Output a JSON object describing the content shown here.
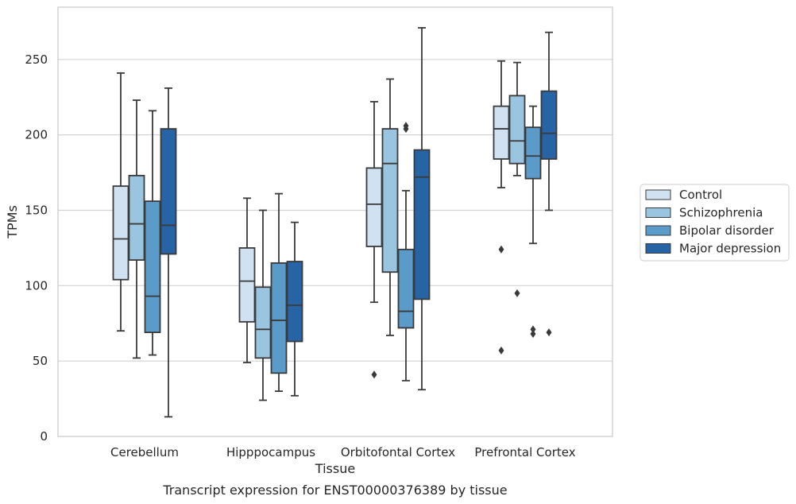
{
  "chart_data": {
    "type": "box",
    "caption": "Transcript expression for ENST00000376389 by tissue",
    "xlabel": "Tissue",
    "ylabel": "TPMs",
    "ylim": [
      0,
      285
    ],
    "yticks": [
      0,
      50,
      100,
      150,
      200,
      250
    ],
    "grid": "horizontal",
    "legend_placement": "right",
    "categories": [
      "Cerebellum",
      "Hipppocampus",
      "Orbitofontal Cortex",
      "Prefrontal Cortex"
    ],
    "series": [
      {
        "name": "Control",
        "color": "#d0e1f2",
        "boxes": [
          {
            "whislo": 70,
            "q1": 104,
            "med": 131,
            "q3": 166,
            "whishi": 241,
            "fliers": []
          },
          {
            "whislo": 49,
            "q1": 76,
            "med": 103,
            "q3": 125,
            "whishi": 158,
            "fliers": []
          },
          {
            "whislo": 89,
            "q1": 126,
            "med": 154,
            "q3": 178,
            "whishi": 222,
            "fliers": [
              41
            ]
          },
          {
            "whislo": 165,
            "q1": 184,
            "med": 204,
            "q3": 219,
            "whishi": 249,
            "fliers": [
              124,
              57
            ]
          }
        ]
      },
      {
        "name": "Schizophrenia",
        "color": "#9ac5e0",
        "boxes": [
          {
            "whislo": 52,
            "q1": 117,
            "med": 141,
            "q3": 173,
            "whishi": 223,
            "fliers": []
          },
          {
            "whislo": 24,
            "q1": 52,
            "med": 71,
            "q3": 99,
            "whishi": 150,
            "fliers": []
          },
          {
            "whislo": 67,
            "q1": 109,
            "med": 181,
            "q3": 204,
            "whishi": 237,
            "fliers": []
          },
          {
            "whislo": 173,
            "q1": 181,
            "med": 196,
            "q3": 226,
            "whishi": 248,
            "fliers": [
              95
            ]
          }
        ]
      },
      {
        "name": "Bipolar disorder",
        "color": "#5a9bc9",
        "boxes": [
          {
            "whislo": 54,
            "q1": 69,
            "med": 93,
            "q3": 156,
            "whishi": 216,
            "fliers": []
          },
          {
            "whislo": 30,
            "q1": 42,
            "med": 77,
            "q3": 115,
            "whishi": 161,
            "fliers": []
          },
          {
            "whislo": 37,
            "q1": 72,
            "med": 83,
            "q3": 124,
            "whishi": 163,
            "fliers": [
              204,
              206
            ]
          },
          {
            "whislo": 128,
            "q1": 171,
            "med": 186,
            "q3": 205,
            "whishi": 219,
            "fliers": [
              71,
              68
            ]
          }
        ]
      },
      {
        "name": "Major depression",
        "color": "#2664a6",
        "boxes": [
          {
            "whislo": 13,
            "q1": 121,
            "med": 140,
            "q3": 204,
            "whishi": 231,
            "fliers": []
          },
          {
            "whislo": 27,
            "q1": 63,
            "med": 87,
            "q3": 116,
            "whishi": 142,
            "fliers": []
          },
          {
            "whislo": 31,
            "q1": 91,
            "med": 172,
            "q3": 190,
            "whishi": 271,
            "fliers": []
          },
          {
            "whislo": 150,
            "q1": 184,
            "med": 201,
            "q3": 229,
            "whishi": 268,
            "fliers": [
              69
            ]
          }
        ]
      }
    ]
  }
}
